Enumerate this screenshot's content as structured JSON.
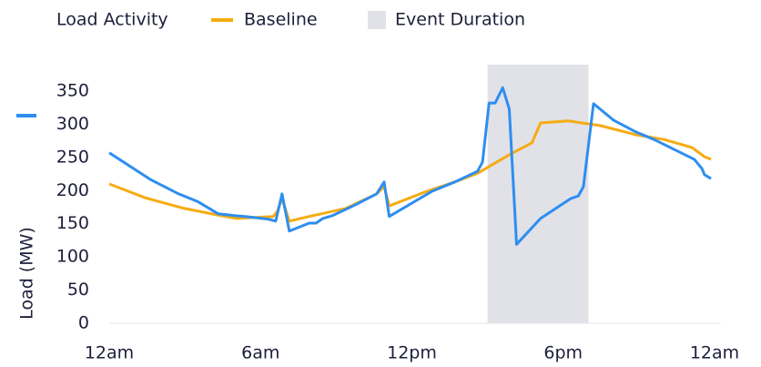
{
  "chart_data": {
    "type": "line",
    "ylabel": "Load (MW)",
    "xlim": [
      0,
      24
    ],
    "xticks": [
      {
        "value": 0,
        "label": "12am"
      },
      {
        "value": 6,
        "label": "6am"
      },
      {
        "value": 12,
        "label": "12pm"
      },
      {
        "value": 18,
        "label": "6pm"
      },
      {
        "value": 24,
        "label": "12am"
      }
    ],
    "ylim": [
      0,
      350
    ],
    "yticks": [
      0,
      50,
      100,
      150,
      200,
      250,
      300,
      350
    ],
    "event": {
      "name": "Event Duration",
      "x": [
        15,
        19
      ],
      "color": "#e1e1e8"
    },
    "series": [
      {
        "name": "Load Activity",
        "color": "#2e8ef0",
        "x": [
          0,
          1.62,
          2.7,
          3.53,
          4.32,
          5.05,
          5.4,
          6.3,
          6.6,
          6.85,
          7.14,
          7.93,
          8.2,
          8.47,
          8.83,
          9.73,
          10.6,
          10.9,
          11.1,
          12.8,
          13.7,
          14.6,
          14.8,
          15.06,
          15.3,
          15.6,
          15.86,
          16.15,
          17.1,
          18.3,
          18.6,
          18.8,
          19.2,
          20.0,
          20.9,
          21.6,
          23.2,
          23.5,
          23.6,
          23.86
        ],
        "values": [
          257,
          217,
          196,
          183,
          165,
          162,
          161,
          157,
          154,
          195,
          139,
          151,
          151,
          158,
          162,
          178,
          195,
          213,
          161,
          199,
          213,
          229,
          243,
          332,
          332,
          355,
          323,
          119,
          158,
          188,
          192,
          206,
          331,
          306,
          288,
          277,
          247,
          233,
          224,
          218
        ]
      },
      {
        "name": "Baseline",
        "color": "#f5ac12",
        "x": [
          0,
          1.44,
          2.88,
          4.32,
          5.05,
          6.5,
          6.67,
          6.85,
          7.14,
          7.93,
          9.37,
          10.6,
          10.9,
          11.1,
          12.6,
          13.7,
          14.6,
          15.86,
          16.76,
          17.1,
          18.2,
          19.46,
          20.9,
          22.0,
          23.1,
          23.6,
          23.86
        ],
        "values": [
          210,
          189,
          174,
          163,
          158,
          161,
          169,
          188,
          154,
          161,
          173,
          195,
          206,
          177,
          199,
          213,
          226,
          254,
          272,
          302,
          305,
          298,
          284,
          277,
          265,
          251,
          247
        ]
      }
    ]
  }
}
